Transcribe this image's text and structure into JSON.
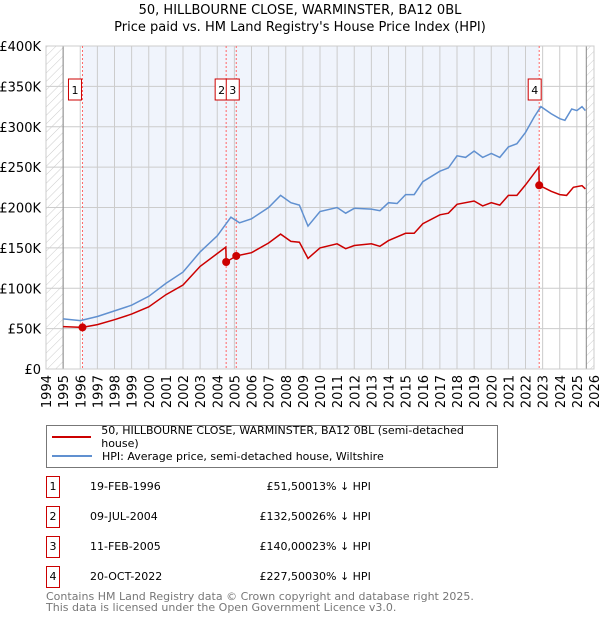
{
  "title": "50, HILLBOURNE CLOSE, WARMINSTER, BA12 0BL",
  "subtitle": "Price paid vs. HM Land Registry's House Price Index (HPI)",
  "colors": {
    "property": "#cc0000",
    "hpi": "#6090d0",
    "shade": "#f0f4fc"
  },
  "chart_data": {
    "type": "line",
    "title": "50, HILLBOURNE CLOSE, WARMINSTER, BA12 0BL — Price paid vs. HM Land Registry's House Price Index (HPI)",
    "xlim": [
      1994,
      2026
    ],
    "ylim": [
      0,
      400000
    ],
    "y_ticks": [
      0,
      50000,
      100000,
      150000,
      200000,
      250000,
      300000,
      350000,
      400000
    ],
    "y_tick_labels": [
      "£0",
      "£50K",
      "£100K",
      "£150K",
      "£200K",
      "£250K",
      "£300K",
      "£350K",
      "£400K"
    ],
    "x_tick_labels": [
      "1994",
      "1995",
      "1996",
      "1997",
      "1998",
      "1999",
      "2000",
      "2001",
      "2002",
      "2003",
      "2004",
      "2005",
      "2006",
      "2007",
      "2008",
      "2009",
      "2010",
      "2011",
      "2012",
      "2013",
      "2014",
      "2015",
      "2016",
      "2017",
      "2018",
      "2019",
      "2020",
      "2021",
      "2022",
      "2023",
      "2024",
      "2025",
      "2026"
    ],
    "grid": true,
    "series": [
      {
        "name": "50, HILLBOURNE CLOSE, WARMINSTER, BA12 0BL (semi-detached house)",
        "x": [
          1995,
          1996.13,
          1997,
          1998,
          1999,
          2000,
          2001,
          2002,
          2003,
          2004,
          2004.5,
          2004.52,
          2005.11,
          2006,
          2007,
          2007.7,
          2008.3,
          2008.8,
          2009.3,
          2010,
          2011,
          2011.5,
          2012,
          2013,
          2013.5,
          2014,
          2015,
          2015.5,
          2016,
          2017,
          2017.5,
          2018,
          2019,
          2019.5,
          2020,
          2020.5,
          2021,
          2021.5,
          2022,
          2022.78,
          2022.8,
          2023.5,
          2024,
          2024.4,
          2024.8,
          2025.3,
          2025.5
        ],
        "y": [
          52500,
          51500,
          55000,
          61000,
          68000,
          77000,
          92000,
          104000,
          127000,
          143000,
          151000,
          132500,
          140000,
          144000,
          156000,
          167000,
          158000,
          157000,
          137000,
          150000,
          155000,
          149000,
          153000,
          155000,
          152000,
          159000,
          168000,
          168000,
          180000,
          191000,
          193000,
          204000,
          208000,
          202000,
          206000,
          203000,
          215000,
          215000,
          228000,
          250000,
          227500,
          220000,
          216000,
          215000,
          225000,
          227000,
          223000
        ]
      },
      {
        "name": "HPI: Average price, semi-detached house, Wiltshire",
        "x": [
          1995,
          1996,
          1997,
          1998,
          1999,
          2000,
          2001,
          2002,
          2003,
          2004,
          2004.8,
          2005.3,
          2006,
          2007,
          2007.7,
          2008.3,
          2008.8,
          2009.3,
          2010,
          2011,
          2011.5,
          2012,
          2013,
          2013.5,
          2014,
          2014.5,
          2015,
          2015.5,
          2016,
          2017,
          2017.5,
          2018,
          2018.5,
          2019,
          2019.5,
          2020,
          2020.5,
          2021,
          2021.5,
          2022,
          2022.5,
          2022.9,
          2023.5,
          2024,
          2024.3,
          2024.7,
          2025,
          2025.3,
          2025.5
        ],
        "y": [
          62000,
          60000,
          65000,
          72000,
          79000,
          90000,
          106000,
          120000,
          145000,
          165000,
          188000,
          181000,
          186000,
          200000,
          215000,
          206000,
          203000,
          177000,
          195000,
          200000,
          193000,
          199000,
          198000,
          196000,
          206000,
          205000,
          216000,
          216000,
          232000,
          245000,
          249000,
          264000,
          262000,
          270000,
          262000,
          267000,
          262000,
          275000,
          279000,
          293000,
          312000,
          325000,
          316000,
          310000,
          308000,
          322000,
          320000,
          325000,
          320000
        ]
      }
    ],
    "sales": [
      {
        "label": "1",
        "x": 1996.13,
        "y": 51500
      },
      {
        "label": "2",
        "x": 2004.52,
        "y": 132500
      },
      {
        "label": "3",
        "x": 2005.11,
        "y": 140000
      },
      {
        "label": "4",
        "x": 2022.8,
        "y": 227500
      }
    ],
    "legend_placement": "below"
  },
  "legend": {
    "property": "50, HILLBOURNE CLOSE, WARMINSTER, BA12 0BL (semi-detached house)",
    "hpi": "HPI: Average price, semi-detached house, Wiltshire"
  },
  "transactions": [
    {
      "num": "1",
      "date": "19-FEB-1996",
      "price": "£51,500",
      "diff": "13% ↓ HPI"
    },
    {
      "num": "2",
      "date": "09-JUL-2004",
      "price": "£132,500",
      "diff": "26% ↓ HPI"
    },
    {
      "num": "3",
      "date": "11-FEB-2005",
      "price": "£140,000",
      "diff": "23% ↓ HPI"
    },
    {
      "num": "4",
      "date": "20-OCT-2022",
      "price": "£227,500",
      "diff": "30% ↓ HPI"
    }
  ],
  "footer": {
    "line1": "Contains HM Land Registry data © Crown copyright and database right 2025.",
    "line2": "This data is licensed under the Open Government Licence v3.0."
  }
}
